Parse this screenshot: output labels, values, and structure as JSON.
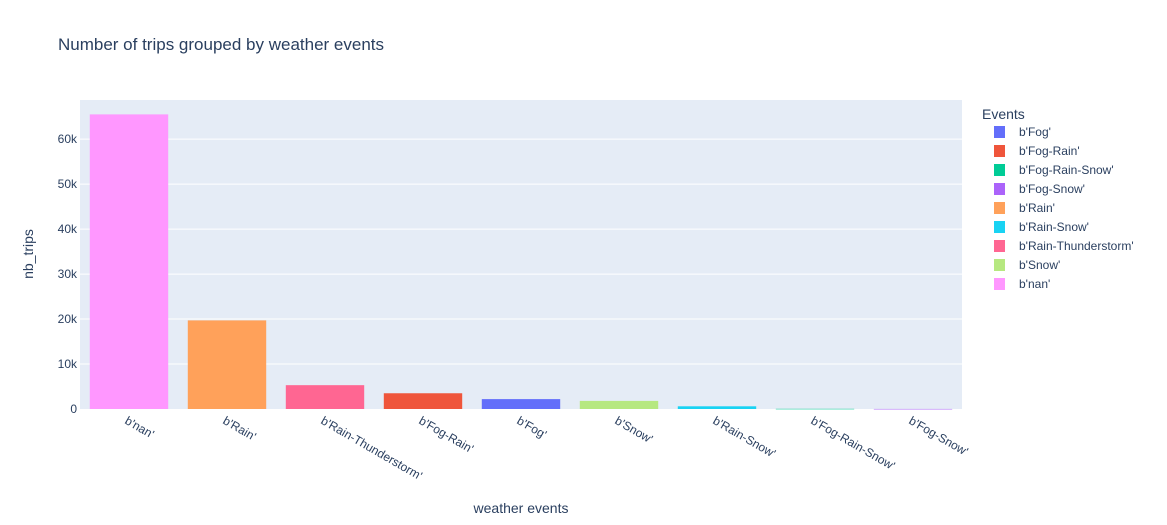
{
  "chart_data": {
    "type": "bar",
    "title": "Number of trips grouped by weather events",
    "xlabel": "weather events",
    "ylabel": "nb_trips",
    "ylim": [
      0,
      68700
    ],
    "yticks": [
      0,
      10000,
      20000,
      30000,
      40000,
      50000,
      60000
    ],
    "ytick_labels": [
      "0",
      "10k",
      "20k",
      "30k",
      "40k",
      "50k",
      "60k"
    ],
    "grid": true,
    "legend_title": "Events",
    "legend_position": "right",
    "categories": [
      "b'nan'",
      "b'Rain'",
      "b'Rain-Thunderstorm'",
      "b'Fog-Rain'",
      "b'Fog'",
      "b'Snow'",
      "b'Rain-Snow'",
      "b'Fog-Rain-Snow'",
      "b'Fog-Snow'"
    ],
    "values": [
      65500,
      19700,
      5300,
      3500,
      2200,
      1800,
      600,
      40,
      15
    ],
    "series": [
      {
        "name": "b'Fog'",
        "color": "#636efa"
      },
      {
        "name": "b'Fog-Rain'",
        "color": "#EF553B"
      },
      {
        "name": "b'Fog-Rain-Snow'",
        "color": "#00cc96"
      },
      {
        "name": "b'Fog-Snow'",
        "color": "#ab63fa"
      },
      {
        "name": "b'Rain'",
        "color": "#FFA15A"
      },
      {
        "name": "b'Rain-Snow'",
        "color": "#19d3f3"
      },
      {
        "name": "b'Rain-Thunderstorm'",
        "color": "#FF6692"
      },
      {
        "name": "b'Snow'",
        "color": "#B6E880"
      },
      {
        "name": "b'nan'",
        "color": "#FF97FF"
      }
    ]
  }
}
